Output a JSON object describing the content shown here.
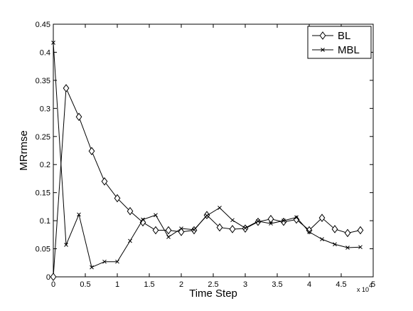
{
  "chart_data": {
    "type": "line",
    "xlabel": "Time Step",
    "ylabel": "MRrmse",
    "x_multiplier_label": "x 10",
    "x_multiplier_exponent": "4",
    "xlim": [
      0,
      5
    ],
    "ylim": [
      0,
      0.45
    ],
    "x_ticks": [
      0,
      0.5,
      1,
      1.5,
      2,
      2.5,
      3,
      3.5,
      4,
      4.5,
      5
    ],
    "y_ticks": [
      0,
      0.05,
      0.1,
      0.15,
      0.2,
      0.25,
      0.3,
      0.35,
      0.4,
      0.45
    ],
    "x_tick_labels": [
      "0",
      "0.5",
      "1",
      "1.5",
      "2",
      "2.5",
      "3",
      "3.5",
      "4",
      "4.5",
      "5"
    ],
    "y_tick_labels": [
      "0",
      "0.05",
      "0.1",
      "0.15",
      "0.2",
      "0.25",
      "0.3",
      "0.35",
      "0.4",
      "0.45"
    ],
    "grid": false,
    "legend_position": "top-right",
    "series": [
      {
        "name": "BL",
        "marker": "diamond",
        "x": [
          0,
          0.2,
          0.4,
          0.6,
          0.8,
          1.0,
          1.2,
          1.4,
          1.6,
          1.8,
          2.0,
          2.2,
          2.4,
          2.6,
          2.8,
          3.0,
          3.2,
          3.4,
          3.6,
          3.8,
          4.0,
          4.2,
          4.4,
          4.6,
          4.8
        ],
        "values": [
          0.0,
          0.336,
          0.285,
          0.224,
          0.17,
          0.14,
          0.117,
          0.097,
          0.083,
          0.083,
          0.08,
          0.083,
          0.11,
          0.088,
          0.085,
          0.086,
          0.098,
          0.103,
          0.098,
          0.102,
          0.083,
          0.105,
          0.085,
          0.078,
          0.083
        ]
      },
      {
        "name": "MBL",
        "marker": "x",
        "x": [
          0,
          0.2,
          0.4,
          0.6,
          0.8,
          1.0,
          1.2,
          1.4,
          1.6,
          1.8,
          2.0,
          2.2,
          2.4,
          2.6,
          2.8,
          3.0,
          3.2,
          3.4,
          3.6,
          3.8,
          4.0,
          4.2,
          4.4,
          4.6,
          4.8
        ],
        "values": [
          0.417,
          0.057,
          0.111,
          0.017,
          0.027,
          0.027,
          0.064,
          0.102,
          0.11,
          0.071,
          0.086,
          0.084,
          0.109,
          0.123,
          0.101,
          0.087,
          0.099,
          0.095,
          0.1,
          0.106,
          0.08,
          0.067,
          0.058,
          0.052,
          0.053
        ]
      }
    ]
  }
}
